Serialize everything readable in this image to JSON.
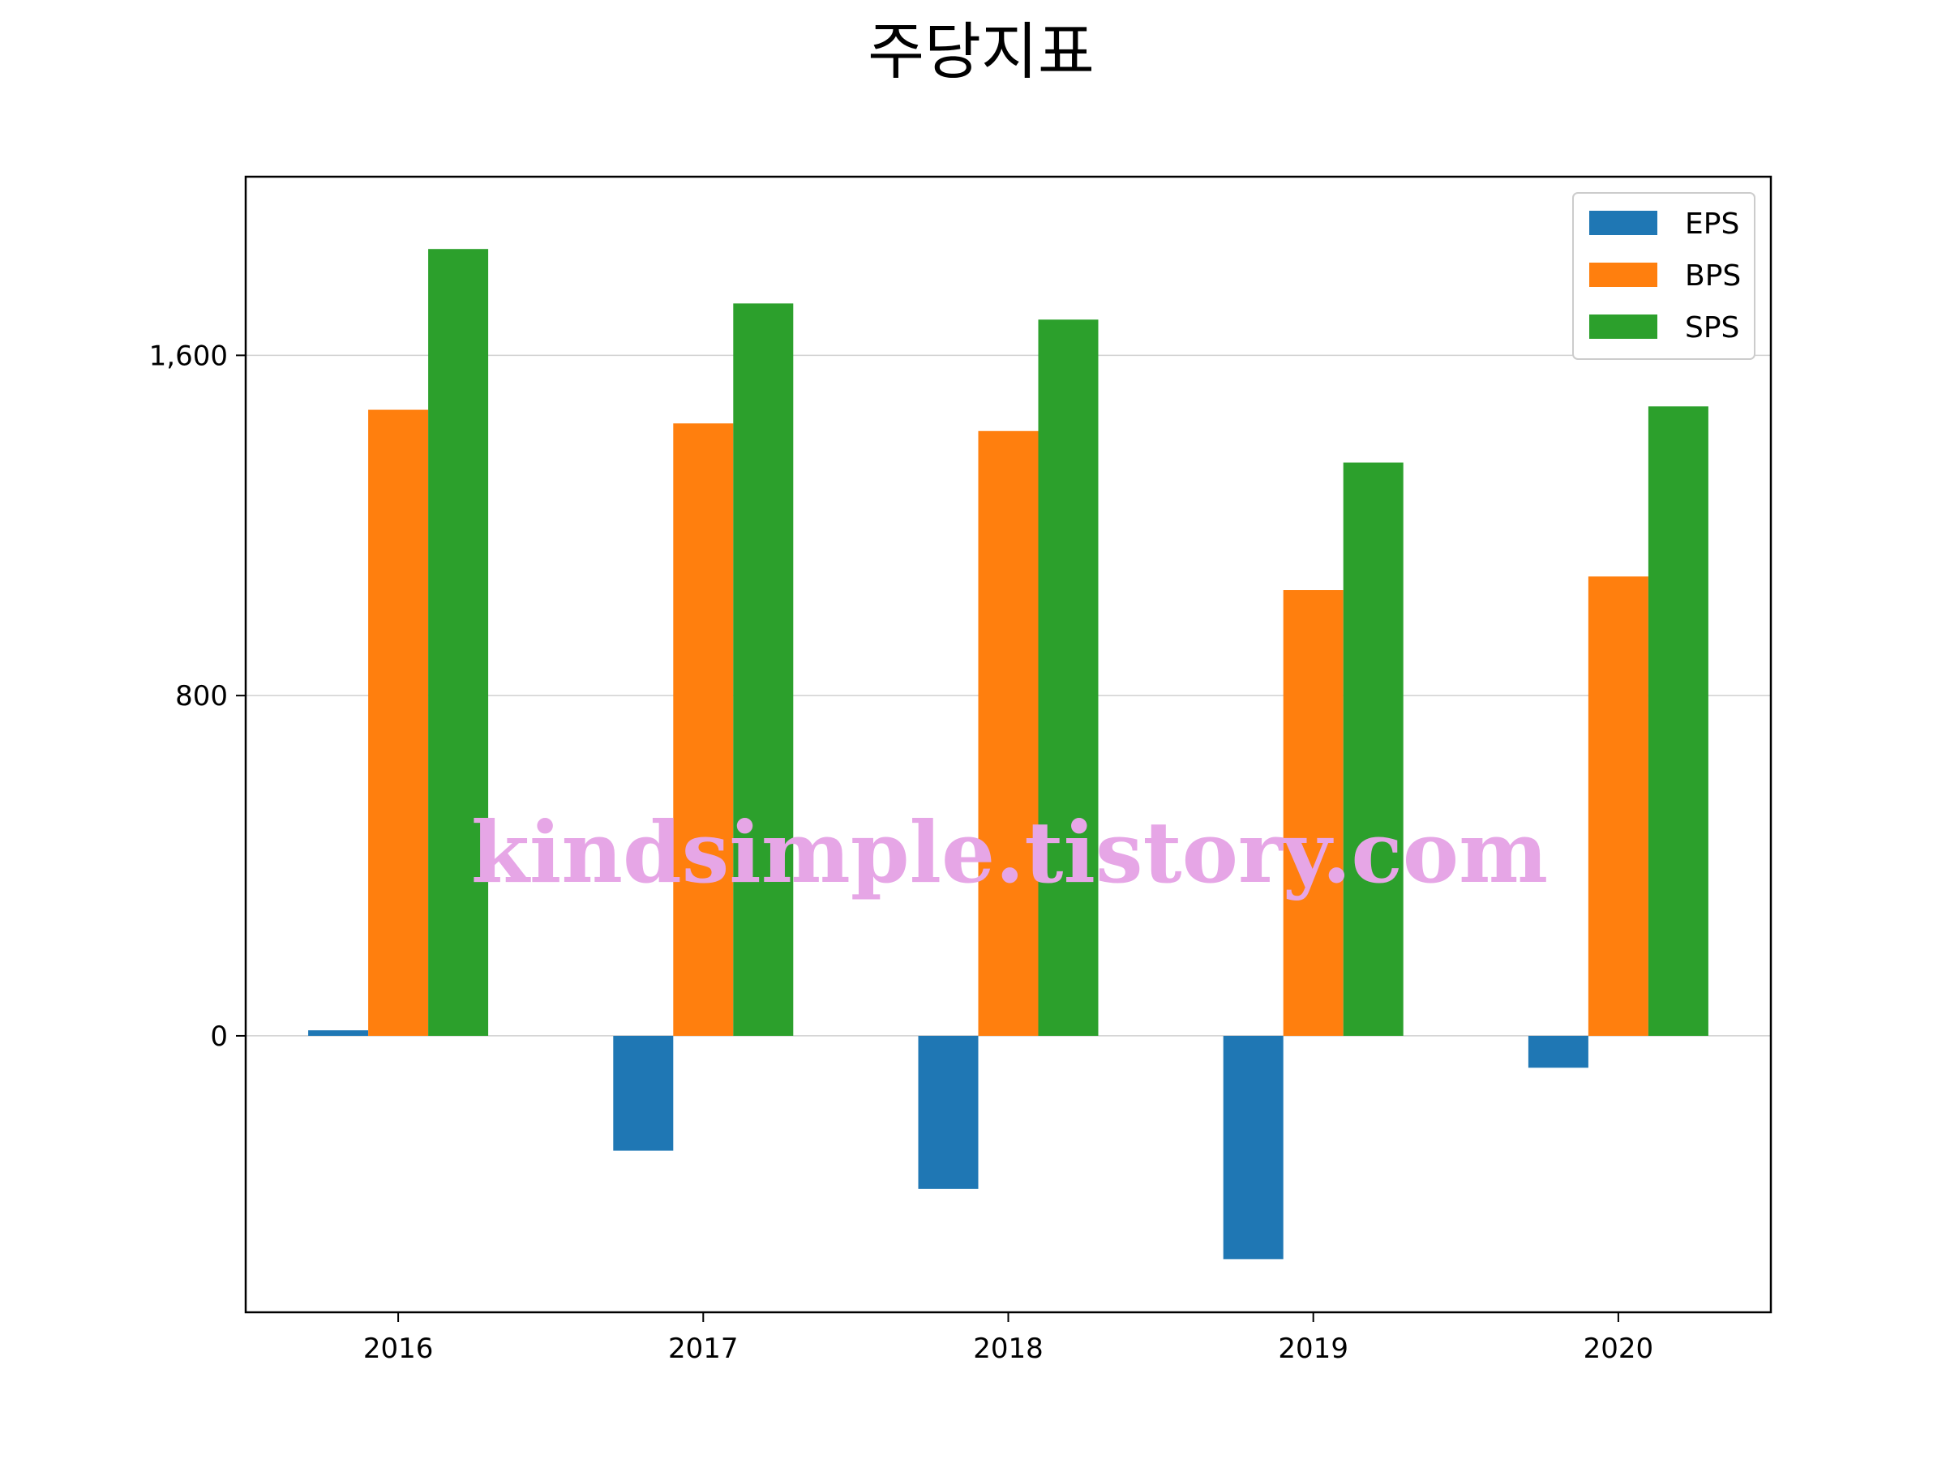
{
  "chart_data": {
    "type": "bar",
    "title": "주당지표",
    "categories": [
      "2016",
      "2017",
      "2018",
      "2019",
      "2020"
    ],
    "series": [
      {
        "name": "EPS",
        "color": "#1f77b4",
        "values": [
          13,
          -270,
          -360,
          -525,
          -75
        ]
      },
      {
        "name": "BPS",
        "color": "#ff7f0e",
        "values": [
          1472,
          1440,
          1422,
          1048,
          1080
        ]
      },
      {
        "name": "SPS",
        "color": "#2ca02c",
        "values": [
          1850,
          1722,
          1684,
          1348,
          1480
        ]
      }
    ],
    "yticks": [
      0,
      800,
      1600
    ],
    "ytick_labels": [
      "0",
      "800",
      "1,600"
    ],
    "ylim": [
      -650,
      2020
    ],
    "grid": "horizontal",
    "legend": "top-right"
  },
  "watermark": "kindsimple.tistory.com"
}
